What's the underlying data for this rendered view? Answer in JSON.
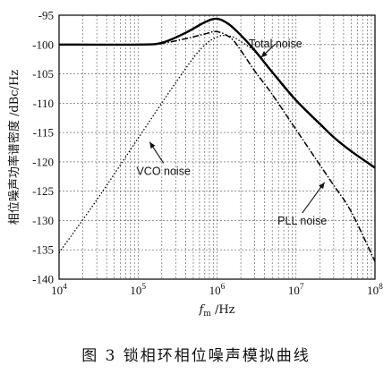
{
  "caption": "图 3   锁相环相位噪声模拟曲线",
  "chart_data": {
    "type": "line",
    "xscale": "log",
    "xlim": [
      10000,
      100000000
    ],
    "ylim": [
      -140,
      -95
    ],
    "grid": true,
    "xlabel": "f_m /Hz",
    "xlabel_main": "f",
    "xlabel_sub": "m",
    "xlabel_unit": " /Hz",
    "ylabel": "相位噪声功率谱密度 /dBc/Hz",
    "x_ticks": [
      {
        "value": 10000,
        "base": "10",
        "exp": "4"
      },
      {
        "value": 100000,
        "base": "10",
        "exp": "5"
      },
      {
        "value": 1000000,
        "base": "10",
        "exp": "6"
      },
      {
        "value": 10000000,
        "base": "10",
        "exp": "7"
      },
      {
        "value": 100000000,
        "base": "10",
        "exp": "8"
      }
    ],
    "y_ticks": [
      -95,
      -100,
      -105,
      -110,
      -115,
      -120,
      -125,
      -130,
      -135,
      -140
    ],
    "series": [
      {
        "name": "Total noise",
        "style": "solid-thick",
        "points": [
          [
            10000,
            -100
          ],
          [
            100000,
            -100
          ],
          [
            200000,
            -99.7
          ],
          [
            400000,
            -98
          ],
          [
            700000,
            -96.2
          ],
          [
            1000000,
            -95.6
          ],
          [
            1400000,
            -96.5
          ],
          [
            2000000,
            -98.4
          ],
          [
            3000000,
            -101
          ],
          [
            5000000,
            -104.7
          ],
          [
            10000000,
            -109.5
          ],
          [
            20000000,
            -113.5
          ],
          [
            30000000,
            -115.8
          ],
          [
            50000000,
            -118.2
          ],
          [
            100000000,
            -121
          ]
        ]
      },
      {
        "name": "PLL noise",
        "style": "dashdot",
        "points": [
          [
            10000,
            -100
          ],
          [
            100000,
            -100
          ],
          [
            200000,
            -99.8
          ],
          [
            400000,
            -99
          ],
          [
            700000,
            -98.2
          ],
          [
            1000000,
            -97.8
          ],
          [
            1500000,
            -98.9
          ],
          [
            2000000,
            -101
          ],
          [
            3000000,
            -104.5
          ],
          [
            5000000,
            -108.5
          ],
          [
            10000000,
            -114.5
          ],
          [
            20000000,
            -120.5
          ],
          [
            30000000,
            -124
          ],
          [
            50000000,
            -128.5
          ],
          [
            100000000,
            -137
          ]
        ]
      },
      {
        "name": "VCO noise",
        "style": "dotted",
        "points": [
          [
            10000,
            -135.5
          ],
          [
            30000,
            -126.5
          ],
          [
            100000,
            -116
          ],
          [
            300000,
            -106.5
          ],
          [
            600000,
            -101
          ],
          [
            1000000,
            -98.7
          ],
          [
            1500000,
            -98.6
          ],
          [
            2000000,
            -99.5
          ],
          [
            3000000,
            -101.2
          ],
          [
            5000000,
            -104.8
          ],
          [
            10000000,
            -109.6
          ],
          [
            30000000,
            -115.8
          ],
          [
            100000000,
            -121
          ]
        ]
      }
    ],
    "annotations": [
      {
        "label": "Total noise",
        "text_at": [
          5500000,
          -100.5
        ],
        "arrow_to": [
          3600000,
          -102.2
        ]
      },
      {
        "label": "VCO noise",
        "text_at": [
          210000,
          -122.2
        ],
        "arrow_to": [
          140000,
          -116.6
        ]
      },
      {
        "label": "PLL noise",
        "text_at": [
          12000000,
          -130.7
        ],
        "arrow_to": [
          23000000,
          -123.5
        ]
      }
    ]
  }
}
